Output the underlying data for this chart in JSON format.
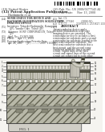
{
  "bg_color": "#ffffff",
  "text_color": "#333333",
  "header_color": "#222222",
  "barcode_color": "#000000",
  "divider_color": "#888888",
  "diagram_bg": "#f2f0eb",
  "hatch_bg": "#b8b8a8",
  "hatch_color": "#666655",
  "mid_layer_bg": "#d8d8cc",
  "top_stripe_light": "#c8c8ba",
  "top_stripe_dark": "#a8a898",
  "cap_dark": "#555545",
  "lens_color": "#e0ddd5",
  "pipe_color": "#777777",
  "outline_color": "#444444",
  "white": "#ffffff",
  "light_layer": "#dcdad0",
  "bump_color": "#aaa898",
  "pedestal_color": "#d0cec6"
}
